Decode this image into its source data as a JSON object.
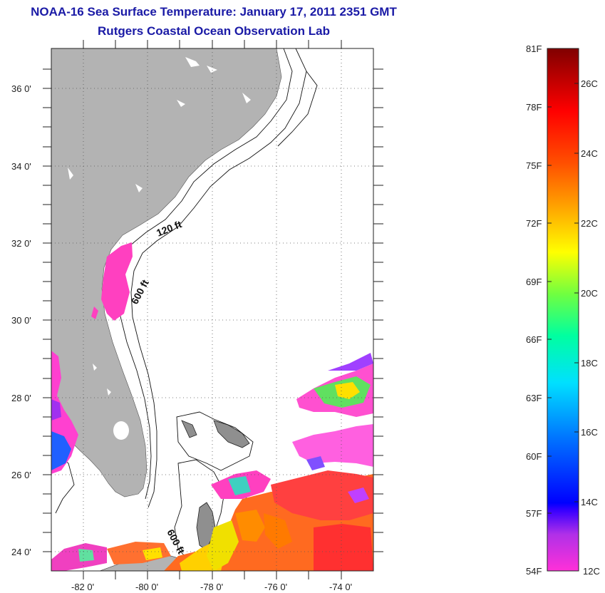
{
  "title": "NOAA-16 Sea Surface Temperature:  January 17, 2011 2351 GMT",
  "subtitle": "Rutgers Coastal Ocean Observation Lab",
  "map": {
    "lon_range": [
      -83,
      -73
    ],
    "lat_range": [
      23,
      37
    ],
    "lon_ticks": [
      {
        "value": -82,
        "label": "-82 0'"
      },
      {
        "value": -80,
        "label": "-80 0'"
      },
      {
        "value": -78,
        "label": "-78 0'"
      },
      {
        "value": -76,
        "label": "-76 0'"
      },
      {
        "value": -74,
        "label": "-74 0'"
      }
    ],
    "lat_ticks": [
      {
        "value": 24,
        "label": "24 0'"
      },
      {
        "value": 26,
        "label": "26 0'"
      },
      {
        "value": 28,
        "label": "28 0'"
      },
      {
        "value": 30,
        "label": "30 0'"
      },
      {
        "value": 32,
        "label": "32 0'"
      },
      {
        "value": 34,
        "label": "34 0'"
      },
      {
        "value": 36,
        "label": "36 0'"
      }
    ],
    "contour_labels": [
      "120 ft",
      "600 ft",
      "600 ft"
    ],
    "land_color": "#b3b3b3",
    "grid": "dotted"
  },
  "colorbar": {
    "fahrenheit_labels": [
      "81F",
      "78F",
      "75F",
      "72F",
      "69F",
      "66F",
      "63F",
      "60F",
      "57F",
      "54F"
    ],
    "celsius_labels": [
      "26C",
      "24C",
      "22C",
      "20C",
      "18C",
      "16C",
      "14C",
      "12C"
    ]
  }
}
